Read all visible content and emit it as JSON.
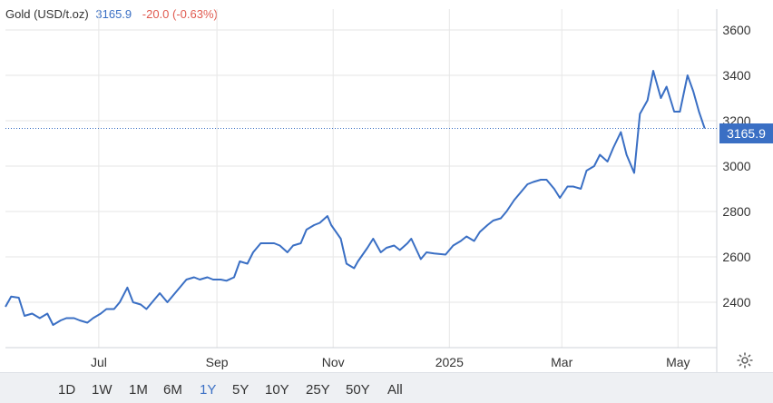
{
  "header": {
    "name": "Gold (USD/t.oz)",
    "value": "3165.9",
    "change": "-20.0 (-0.63%)"
  },
  "last_label": "3165.9",
  "ranges": [
    "1D",
    "1W",
    "1M",
    "6M",
    "1Y",
    "5Y",
    "10Y",
    "25Y",
    "50Y",
    "All"
  ],
  "active_range": "1Y",
  "icons": {
    "settings": "gear-icon"
  },
  "colors": {
    "series": "#3a6fc4",
    "change_negative": "#e05a4f"
  },
  "chart_data": {
    "type": "line",
    "title": "Gold (USD/t.oz)",
    "xlabel": "",
    "ylabel": "",
    "ylim": [
      2200,
      3700
    ],
    "y_ticks": [
      "2400",
      "2600",
      "2800",
      "3000",
      "3200",
      "3400",
      "3600"
    ],
    "x_ticks": [
      "Jul",
      "Sep",
      "Nov",
      "2025",
      "Mar",
      "May"
    ],
    "grid": true,
    "last_value": 3165.9,
    "series": [
      {
        "name": "Gold (USD/t.oz)",
        "x": [
          "2024-05-13",
          "2024-05-16",
          "2024-05-20",
          "2024-05-23",
          "2024-05-27",
          "2024-05-31",
          "2024-06-04",
          "2024-06-07",
          "2024-06-11",
          "2024-06-14",
          "2024-06-18",
          "2024-06-21",
          "2024-06-25",
          "2024-06-28",
          "2024-07-02",
          "2024-07-05",
          "2024-07-09",
          "2024-07-12",
          "2024-07-16",
          "2024-07-19",
          "2024-07-23",
          "2024-07-26",
          "2024-07-30",
          "2024-08-02",
          "2024-08-06",
          "2024-08-09",
          "2024-08-13",
          "2024-08-16",
          "2024-08-20",
          "2024-08-23",
          "2024-08-27",
          "2024-08-30",
          "2024-09-03",
          "2024-09-06",
          "2024-09-10",
          "2024-09-13",
          "2024-09-17",
          "2024-09-20",
          "2024-09-24",
          "2024-09-27",
          "2024-10-01",
          "2024-10-04",
          "2024-10-08",
          "2024-10-11",
          "2024-10-15",
          "2024-10-18",
          "2024-10-22",
          "2024-10-25",
          "2024-10-29",
          "2024-10-31",
          "2024-11-05",
          "2024-11-08",
          "2024-11-12",
          "2024-11-14",
          "2024-11-19",
          "2024-11-22",
          "2024-11-26",
          "2024-11-29",
          "2024-12-03",
          "2024-12-06",
          "2024-12-10",
          "2024-12-12",
          "2024-12-17",
          "2024-12-20",
          "2024-12-24",
          "2024-12-30",
          "2025-01-03",
          "2025-01-07",
          "2025-01-10",
          "2025-01-14",
          "2025-01-17",
          "2025-01-21",
          "2025-01-24",
          "2025-01-28",
          "2025-01-31",
          "2025-02-04",
          "2025-02-07",
          "2025-02-11",
          "2025-02-14",
          "2025-02-18",
          "2025-02-21",
          "2025-02-25",
          "2025-02-28",
          "2025-03-04",
          "2025-03-07",
          "2025-03-11",
          "2025-03-14",
          "2025-03-18",
          "2025-03-21",
          "2025-03-25",
          "2025-03-28",
          "2025-04-01",
          "2025-04-04",
          "2025-04-08",
          "2025-04-11",
          "2025-04-15",
          "2025-04-18",
          "2025-04-22",
          "2025-04-25",
          "2025-04-29",
          "2025-05-02",
          "2025-05-06",
          "2025-05-09",
          "2025-05-12",
          "2025-05-15"
        ],
        "values": [
          2380,
          2425,
          2420,
          2340,
          2350,
          2330,
          2350,
          2300,
          2320,
          2330,
          2330,
          2320,
          2310,
          2330,
          2350,
          2370,
          2370,
          2400,
          2465,
          2400,
          2390,
          2370,
          2410,
          2440,
          2400,
          2430,
          2470,
          2500,
          2510,
          2500,
          2510,
          2500,
          2500,
          2495,
          2510,
          2580,
          2570,
          2620,
          2660,
          2660,
          2660,
          2650,
          2620,
          2650,
          2660,
          2720,
          2740,
          2750,
          2780,
          2740,
          2680,
          2570,
          2550,
          2580,
          2640,
          2680,
          2620,
          2640,
          2650,
          2630,
          2660,
          2680,
          2590,
          2620,
          2615,
          2610,
          2650,
          2670,
          2690,
          2670,
          2710,
          2740,
          2760,
          2770,
          2800,
          2850,
          2880,
          2920,
          2930,
          2940,
          2940,
          2900,
          2860,
          2910,
          2910,
          2900,
          2980,
          3000,
          3050,
          3020,
          3080,
          3150,
          3050,
          2970,
          3230,
          3290,
          3420,
          3300,
          3350,
          3240,
          3240,
          3400,
          3330,
          3240,
          3165.9
        ]
      }
    ]
  }
}
